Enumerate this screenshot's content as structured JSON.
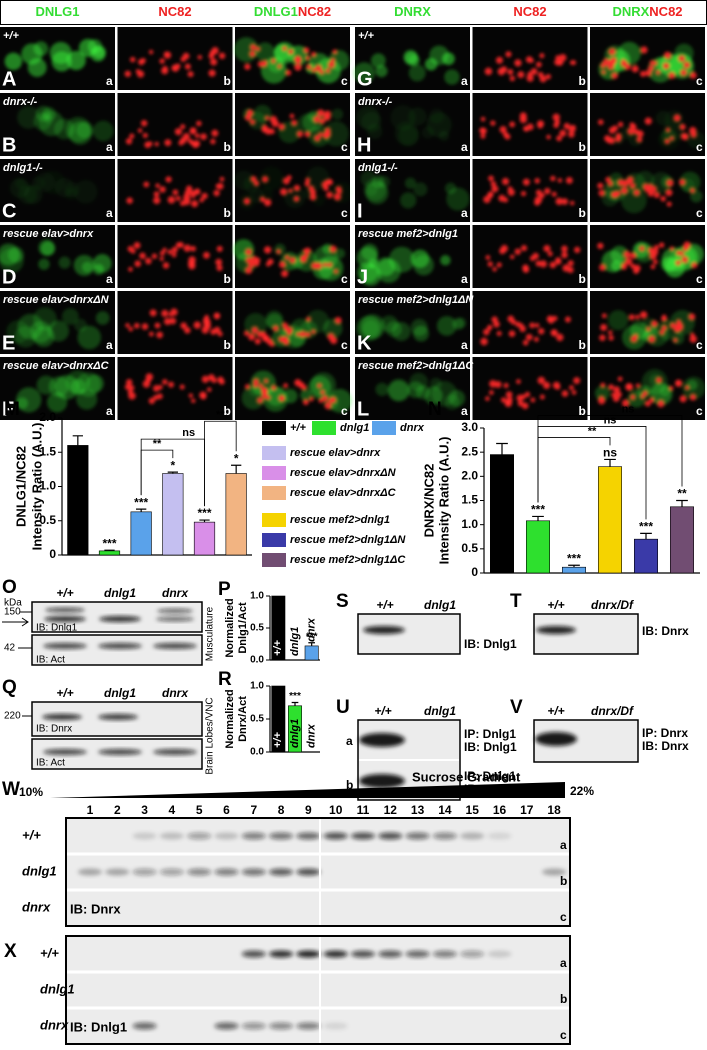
{
  "microscopy": {
    "headers_left": [
      [
        {
          "text": "DNLG1",
          "color": "#33dd33"
        }
      ],
      [
        {
          "text": "NC82",
          "color": "#ee2222"
        }
      ],
      [
        {
          "text": "DNLG1",
          "color": "#33dd33"
        },
        {
          "text": "NC82",
          "color": "#ee2222"
        }
      ]
    ],
    "headers_right": [
      [
        {
          "text": "DNRX",
          "color": "#33dd33"
        }
      ],
      [
        {
          "text": "NC82",
          "color": "#ee2222"
        }
      ],
      [
        {
          "text": "DNRX",
          "color": "#33dd33"
        },
        {
          "text": "NC82",
          "color": "#ee2222"
        }
      ]
    ],
    "rows_left": [
      {
        "letter": "A",
        "genotype": "+/+"
      },
      {
        "letter": "B",
        "genotype": "dnrx-/-"
      },
      {
        "letter": "C",
        "genotype": "dnlg1-/-"
      },
      {
        "letter": "D",
        "genotype": "rescue elav>dnrx"
      },
      {
        "letter": "E",
        "genotype": "rescue elav>dnrxΔN"
      },
      {
        "letter": "F",
        "genotype": "rescue elav>dnrxΔC"
      }
    ],
    "rows_right": [
      {
        "letter": "G",
        "genotype": "+/+"
      },
      {
        "letter": "H",
        "genotype": "dnrx-/-"
      },
      {
        "letter": "I",
        "genotype": "dnlg1-/-"
      },
      {
        "letter": "J",
        "genotype": "rescue mef2>dnlg1"
      },
      {
        "letter": "K",
        "genotype": "rescue mef2>dnlg1ΔN"
      },
      {
        "letter": "L",
        "genotype": "rescue mef2>dnlg1ΔC"
      }
    ],
    "tile_letters": [
      "a",
      "b",
      "c"
    ]
  },
  "legend": [
    {
      "name": "+/+",
      "color": "#000000"
    },
    {
      "name": "dnlg1",
      "color": "#2ee02e"
    },
    {
      "name": "dnrx",
      "color": "#5aa2ea"
    },
    {
      "name": "rescue elav>dnrx",
      "color": "#c4bff0"
    },
    {
      "name": "rescue elav>dnrxΔN",
      "color": "#d98fe8"
    },
    {
      "name": "rescue elav>dnrxΔC",
      "color": "#f2b482"
    },
    {
      "name": "rescue mef2>dnlg1",
      "color": "#f5d300"
    },
    {
      "name": "rescue mef2>dnlg1ΔN",
      "color": "#3a3aa8"
    },
    {
      "name": "rescue mef2>dnlg1ΔC",
      "color": "#714d72"
    }
  ],
  "chart_data": [
    {
      "type": "bar",
      "panel": "M",
      "ylabel": [
        "DNLG1/NC82",
        "Intensity Ratio (A.U.)"
      ],
      "categories": [
        null,
        null,
        null,
        null,
        null,
        null
      ],
      "values": [
        1.6,
        0.06,
        0.63,
        1.19,
        0.48,
        1.19
      ],
      "errors": [
        0.14,
        0.01,
        0.04,
        0.02,
        0.03,
        0.12
      ],
      "colors": [
        "#000000",
        "#2ee02e",
        "#5aa2ea",
        "#c4bff0",
        "#d98fe8",
        "#f2b482"
      ],
      "annotations": [
        null,
        "***",
        "***",
        "*",
        "***",
        "*"
      ],
      "brackets": [
        {
          "from": 2,
          "to": 3,
          "label": "**"
        },
        {
          "from": 2,
          "to": 4,
          "label": "ns"
        },
        {
          "from": 4,
          "to": 5,
          "label": "**"
        }
      ],
      "ylim": [
        0,
        2
      ],
      "yticks": [
        0,
        0.5,
        {
          "value": 1,
          "label": "1.0"
        },
        1.5,
        {
          "value": 2,
          "label": "2.0"
        }
      ],
      "grid": false
    },
    {
      "type": "bar",
      "panel": "N",
      "ylabel": [
        "DNRX/NC82",
        "Intensity Ratio (A.U.)"
      ],
      "categories": [
        null,
        null,
        null,
        null,
        null,
        null
      ],
      "values": [
        2.45,
        1.08,
        0.12,
        2.2,
        0.7,
        1.37
      ],
      "errors": [
        0.23,
        0.09,
        0.04,
        0.15,
        0.12,
        0.13
      ],
      "colors": [
        "#000000",
        "#2ee02e",
        "#5aa2ea",
        "#f5d300",
        "#3a3aa8",
        "#714d72"
      ],
      "annotations": [
        null,
        "***",
        "***",
        "ns",
        "***",
        "**"
      ],
      "brackets": [
        {
          "from": 1,
          "to": 3,
          "label": "**"
        },
        {
          "from": 1,
          "to": 4,
          "label": "ns"
        },
        {
          "from": 1,
          "to": 5,
          "label": "ns"
        }
      ],
      "ylim": [
        0,
        3
      ],
      "yticks": [
        0,
        0.5,
        {
          "value": 1,
          "label": "1.0"
        },
        1.5,
        {
          "value": 2,
          "label": "2.0"
        },
        2.5,
        {
          "value": 3,
          "label": "3.0"
        }
      ],
      "grid": false
    },
    {
      "type": "bar",
      "panel": "P",
      "ylabel": [
        "Normalized",
        "Dnlg1/Act"
      ],
      "categories": [
        "+/+",
        "dnlg1",
        "dnrx"
      ],
      "values": [
        1.0,
        0,
        0.22
      ],
      "errors": [
        null,
        null,
        0.05
      ],
      "colors": [
        "#000000",
        "#2ee02e",
        "#5aa2ea"
      ],
      "annotations": [
        null,
        null,
        "***"
      ],
      "ylim": [
        0,
        1
      ],
      "yticks": [
        {
          "value": 0,
          "label": "0.0"
        },
        0.5,
        {
          "value": 1,
          "label": "1.0"
        }
      ],
      "grid": false
    },
    {
      "type": "bar",
      "panel": "R",
      "ylabel": [
        "Normalized",
        "Dnrx/Act"
      ],
      "categories": [
        "+/+",
        "dnlg1",
        "dnrx"
      ],
      "values": [
        1.0,
        0.7,
        0
      ],
      "errors": [
        null,
        0.05,
        null
      ],
      "colors": [
        "#000000",
        "#2ee02e",
        "#5aa2ea"
      ],
      "annotations": [
        null,
        "***",
        null
      ],
      "ylim": [
        0,
        1
      ],
      "yticks": [
        {
          "value": 0,
          "label": "0.0"
        },
        0.5,
        {
          "value": 1,
          "label": "1.0"
        }
      ],
      "grid": false
    }
  ],
  "blots": {
    "O": {
      "letter": "O",
      "kda": "kDa",
      "markers": [
        "150",
        "42"
      ],
      "lanes": [
        "+/+",
        "dnlg1",
        "dnrx"
      ],
      "rows": [
        "IB: Dnlg1",
        "IB: Act"
      ],
      "tissue": "Musculature"
    },
    "Q": {
      "letter": "Q",
      "markers": [
        "220"
      ],
      "lanes": [
        "+/+",
        "dnlg1",
        "dnrx"
      ],
      "rows": [
        "IB: Dnrx",
        "IB: Act"
      ],
      "tissue": "Brain Lobes/VNC"
    },
    "S": {
      "letter": "S",
      "lanes": [
        "+/+",
        "dnlg1"
      ],
      "rows": [
        "IB: Dnlg1"
      ]
    },
    "T": {
      "letter": "T",
      "lanes": [
        "+/+",
        "dnrx/Df"
      ],
      "rows": [
        "IB: Dnrx"
      ]
    },
    "U": {
      "letter": "U",
      "lanes": [
        "+/+",
        "dnlg1"
      ],
      "rows": [
        [
          "IP: Dnlg1",
          "IB: Dnlg1"
        ],
        [
          "IP: Dnlg1",
          "IB: Dnrx"
        ]
      ],
      "sublabels": [
        "a",
        "b"
      ]
    },
    "V": {
      "letter": "V",
      "lanes": [
        "+/+",
        "dnrx/Df"
      ],
      "rows": [
        [
          "IP: Dnrx",
          "IB: Dnrx"
        ]
      ]
    }
  },
  "gradient": {
    "W": {
      "letter": "W",
      "low": "10%",
      "title": "Sucrose Gradient",
      "high": "22%",
      "fractions": [
        1,
        2,
        3,
        4,
        5,
        6,
        7,
        8,
        9,
        10,
        11,
        12,
        13,
        14,
        15,
        16,
        17,
        18
      ],
      "rows": [
        "+/+",
        "dnlg1",
        "dnrx"
      ],
      "probe": "IB: Dnrx",
      "sublabels": [
        "a",
        "b",
        "c"
      ]
    },
    "X": {
      "letter": "X",
      "rows": [
        "+/+",
        "dnlg1",
        "dnrx"
      ],
      "probe": "IB: Dnlg1",
      "sublabels": [
        "a",
        "b",
        "c"
      ]
    }
  }
}
